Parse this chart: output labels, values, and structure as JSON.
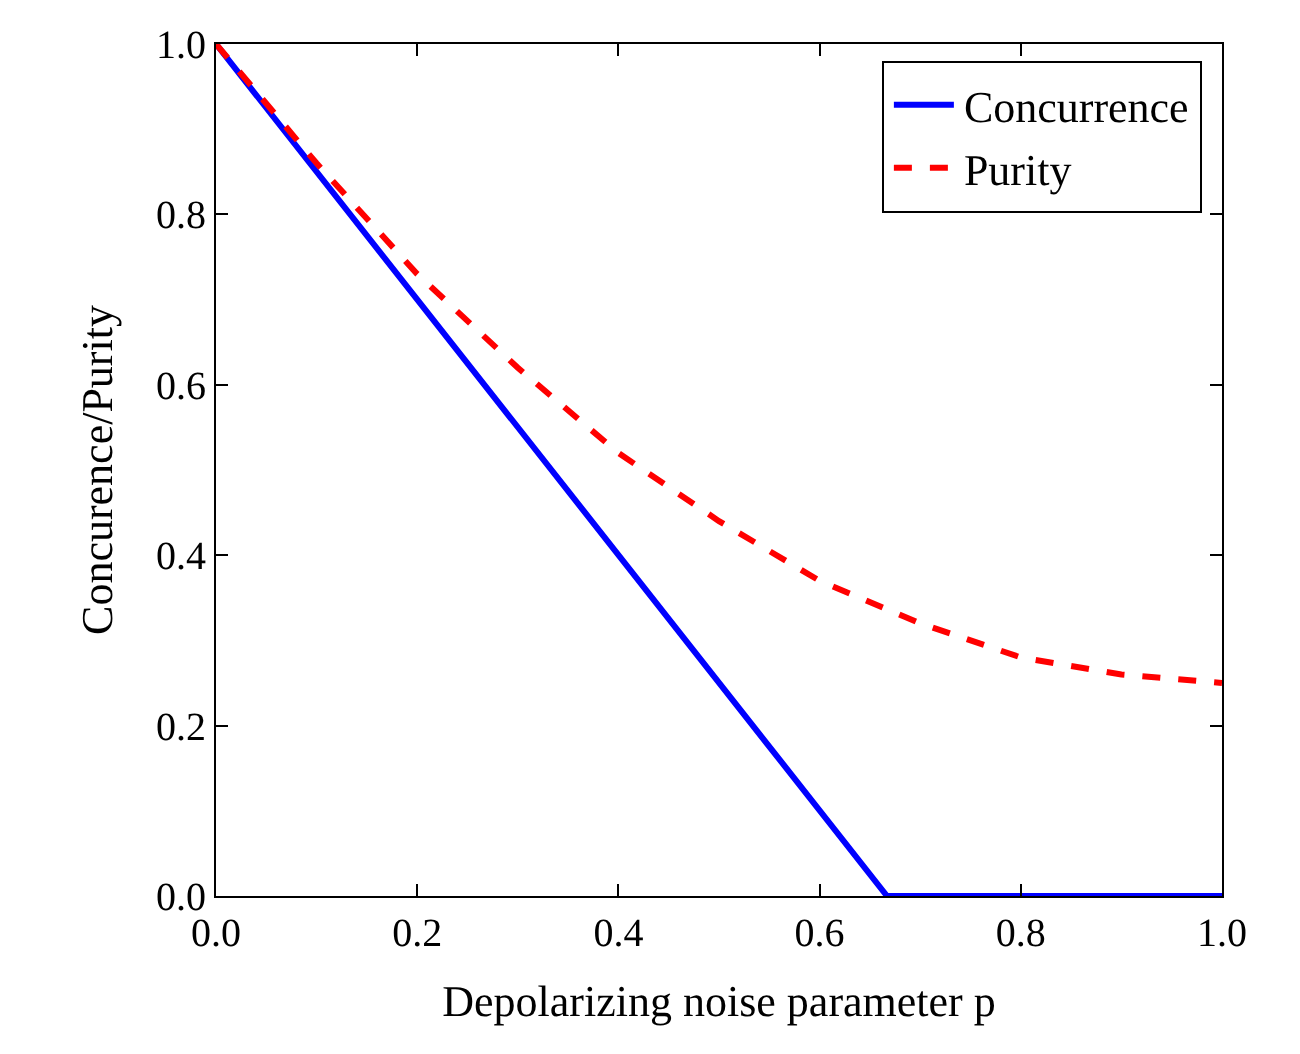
{
  "chart_data": {
    "type": "line",
    "xlabel": "Depolarizing noise parameter p",
    "ylabel": "Concurence/Purity",
    "xlim": [
      0,
      1
    ],
    "ylim": [
      0,
      1
    ],
    "xticks": [
      {
        "value": 0,
        "label": "0.0"
      },
      {
        "value": 0.2,
        "label": "0.2"
      },
      {
        "value": 0.4,
        "label": "0.4"
      },
      {
        "value": 0.6,
        "label": "0.6"
      },
      {
        "value": 0.8,
        "label": "0.8"
      },
      {
        "value": 1,
        "label": "1.0"
      }
    ],
    "yticks": [
      {
        "value": 0,
        "label": "0.0"
      },
      {
        "value": 0.2,
        "label": "0.2"
      },
      {
        "value": 0.4,
        "label": "0.4"
      },
      {
        "value": 0.6,
        "label": "0.6"
      },
      {
        "value": 0.8,
        "label": "0.8"
      },
      {
        "value": 1,
        "label": "1.0"
      }
    ],
    "legend": "top right",
    "marker": "none",
    "series": [
      {
        "name": "Concurrence",
        "color": "#0000ff",
        "line_style": "solid",
        "x": [
          0,
          0.667,
          1
        ],
        "values": [
          1,
          0,
          0
        ]
      },
      {
        "name": "Purity",
        "color": "#ff0000",
        "line_style": "dashed",
        "x": [
          0,
          0.1,
          0.2,
          0.3,
          0.4,
          0.5,
          0.6,
          0.7,
          0.8,
          0.9,
          1
        ],
        "values": [
          1.0,
          0.86,
          0.73,
          0.62,
          0.52,
          0.44,
          0.37,
          0.32,
          0.28,
          0.26,
          0.25
        ]
      }
    ]
  }
}
